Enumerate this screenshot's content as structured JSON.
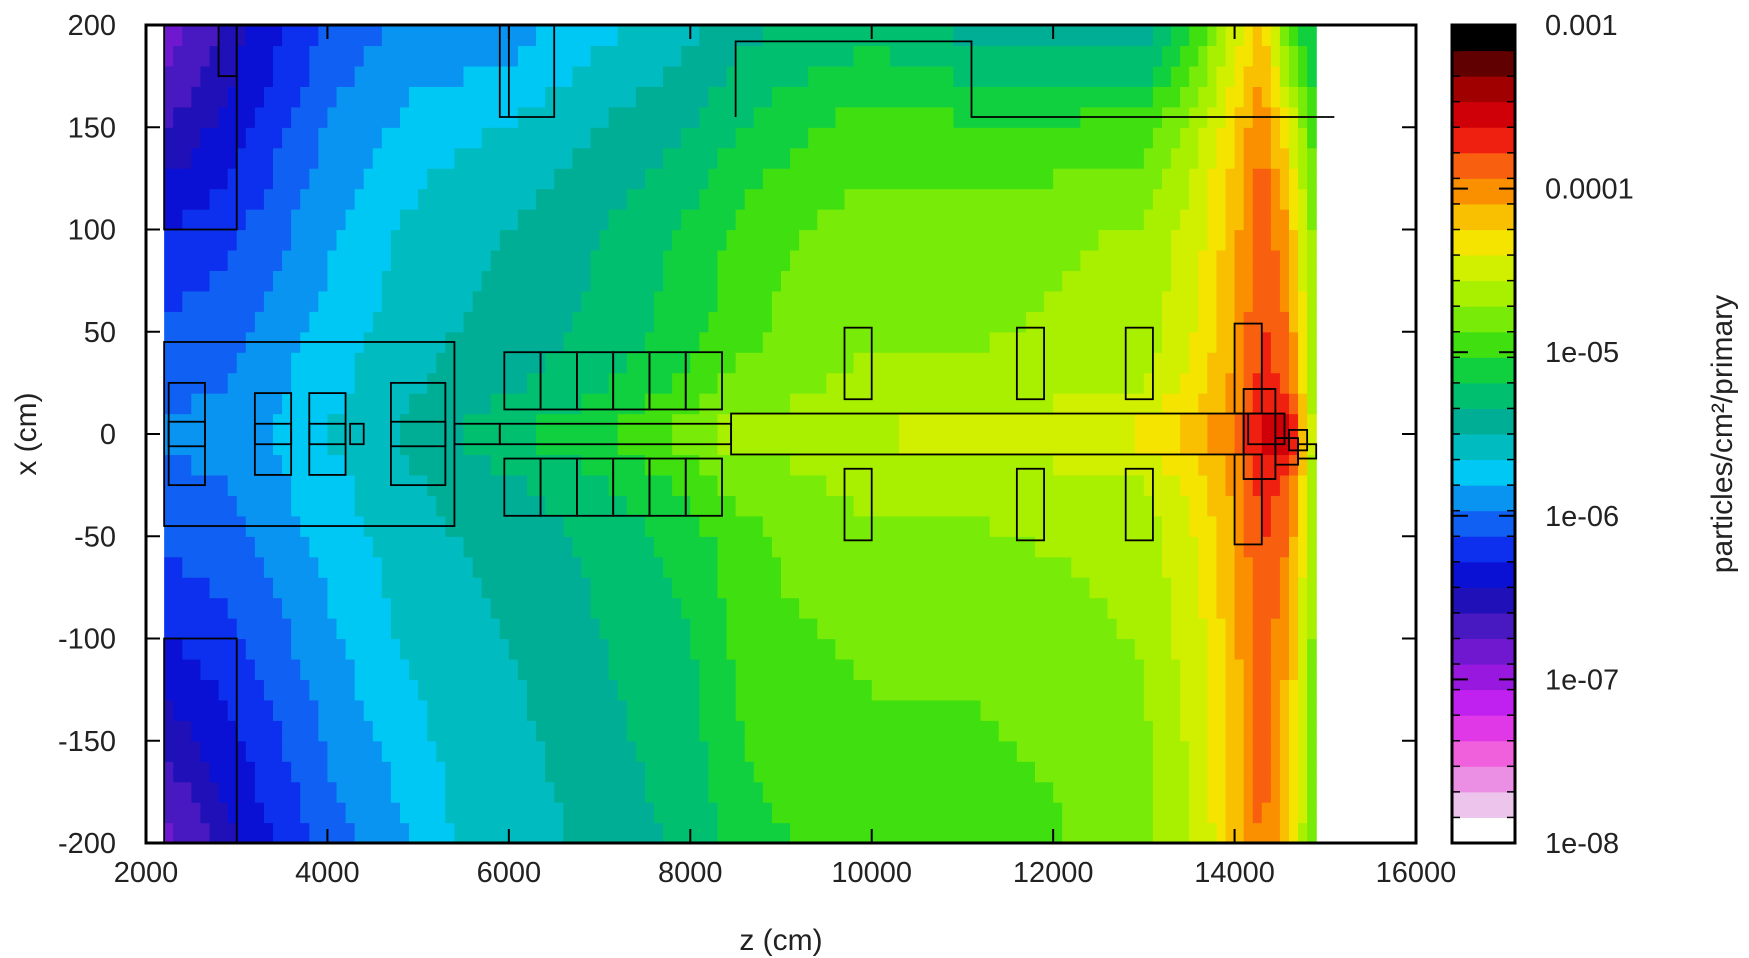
{
  "chart_data": {
    "type": "heatmap",
    "title": "",
    "xlabel": "z (cm)",
    "ylabel": "x (cm)",
    "colorbar_label": "particles/cm²/primary",
    "xlim": [
      2000,
      16000
    ],
    "ylim": [
      -200,
      200
    ],
    "x_ticks": [
      "2000",
      "4000",
      "6000",
      "8000",
      "10000",
      "12000",
      "14000",
      "16000"
    ],
    "y_ticks": [
      "200",
      "150",
      "100",
      "50",
      "0",
      "-50",
      "-100",
      "-150",
      "-200"
    ],
    "color_scale": "log",
    "zlim": [
      1e-08,
      0.001
    ],
    "colorbar_ticks": [
      "0.001",
      "0.0001",
      "1e-05",
      "1e-06",
      "1e-07",
      "1e-08"
    ],
    "colorbar_levels": [
      "#ffffff",
      "#ecc4ec",
      "#ea8fe4",
      "#f060dc",
      "#e038e6",
      "#c020f0",
      "#9818e0",
      "#7018d0",
      "#4818c0",
      "#2010b8",
      "#0a10d4",
      "#0c30ee",
      "#1060f4",
      "#0a94f2",
      "#00c8f4",
      "#00bcc0",
      "#00ae96",
      "#00c070",
      "#10d040",
      "#40e010",
      "#78ec08",
      "#a8f000",
      "#d0f000",
      "#f4e400",
      "#f8c000",
      "#fa9000",
      "#f86010",
      "#f02010",
      "#d00008",
      "#a00000",
      "#600000",
      "#000000"
    ],
    "colors": {
      "outline": "#000000",
      "frame": "#000000"
    },
    "field_map": {
      "description_of_values": "log10 of particle fluence (particles/cm2/primary) sampled on z-x grid",
      "z_points": [
        2200,
        3000,
        4000,
        5000,
        5400,
        6000,
        7000,
        8000,
        8500,
        9000,
        10000,
        11000,
        12000,
        13000,
        13600,
        14000,
        14300,
        14600,
        14900
      ],
      "x_points": [
        -200,
        -150,
        -100,
        -50,
        -20,
        0,
        20,
        50,
        100,
        150,
        200
      ],
      "log_fluence_columns": [
        [
          -6.85,
          -6.55,
          -6.3,
          -6.1,
          -6.0,
          -5.95,
          -6.0,
          -6.1,
          -6.3,
          -6.6,
          -6.9
        ],
        [
          -6.45,
          -6.3,
          -6.15,
          -6.0,
          -5.95,
          -5.9,
          -5.95,
          -6.0,
          -6.15,
          -6.35,
          -6.5
        ],
        [
          -6.05,
          -5.95,
          -5.85,
          -5.75,
          -5.7,
          -5.65,
          -5.7,
          -5.75,
          -5.85,
          -5.95,
          -6.1
        ],
        [
          -5.8,
          -5.7,
          -5.6,
          -5.55,
          -5.5,
          -5.45,
          -5.5,
          -5.55,
          -5.6,
          -5.75,
          -5.9
        ],
        [
          -5.65,
          -5.6,
          -5.55,
          -5.5,
          -5.45,
          -5.35,
          -5.45,
          -5.5,
          -5.55,
          -5.7,
          -5.95
        ],
        [
          -5.6,
          -5.55,
          -5.5,
          -5.45,
          -5.35,
          -5.2,
          -5.35,
          -5.45,
          -5.5,
          -5.65,
          -5.9
        ],
        [
          -5.45,
          -5.4,
          -5.35,
          -5.3,
          -5.2,
          -5.05,
          -5.2,
          -5.3,
          -5.35,
          -5.5,
          -5.7
        ],
        [
          -5.3,
          -5.25,
          -5.2,
          -5.1,
          -4.95,
          -4.8,
          -4.95,
          -5.1,
          -5.15,
          -5.35,
          -5.55
        ],
        [
          -5.15,
          -5.05,
          -5.0,
          -4.95,
          -4.8,
          -4.6,
          -4.8,
          -4.95,
          -5.0,
          -5.2,
          -5.4
        ],
        [
          -5.05,
          -4.95,
          -4.9,
          -4.85,
          -4.75,
          -4.65,
          -4.75,
          -4.85,
          -4.9,
          -5.1,
          -5.35
        ],
        [
          -4.95,
          -4.9,
          -4.85,
          -4.75,
          -4.65,
          -4.55,
          -4.65,
          -4.75,
          -4.8,
          -4.95,
          -5.25
        ],
        [
          -4.95,
          -4.9,
          -4.85,
          -4.75,
          -4.65,
          -4.5,
          -4.65,
          -4.75,
          -4.8,
          -5.0,
          -5.4
        ],
        [
          -4.9,
          -4.85,
          -4.8,
          -4.7,
          -4.6,
          -4.45,
          -4.6,
          -4.7,
          -4.75,
          -5.0,
          -5.45
        ],
        [
          -4.75,
          -4.75,
          -4.7,
          -4.65,
          -4.55,
          -4.35,
          -4.55,
          -4.65,
          -4.7,
          -4.95,
          -5.5
        ],
        [
          -4.55,
          -4.5,
          -4.45,
          -4.4,
          -4.3,
          -4.15,
          -4.3,
          -4.4,
          -4.45,
          -4.6,
          -5.0
        ],
        [
          -4.2,
          -4.15,
          -4.15,
          -4.1,
          -4.05,
          -3.9,
          -4.05,
          -4.1,
          -4.15,
          -4.25,
          -4.5
        ],
        [
          -3.9,
          -3.85,
          -3.8,
          -3.75,
          -3.7,
          -3.6,
          -3.7,
          -3.75,
          -3.8,
          -3.95,
          -4.2
        ],
        [
          -4.3,
          -4.2,
          -4.1,
          -3.95,
          -3.8,
          -3.5,
          -3.8,
          -3.95,
          -4.1,
          -4.4,
          -5.0
        ],
        [
          -4.85,
          -4.85,
          -4.85,
          -4.8,
          -4.8,
          -4.7,
          -4.8,
          -4.8,
          -4.85,
          -5.0,
          -5.2
        ]
      ]
    },
    "geometry_outlines": {
      "units": "data units (z cm, x cm)",
      "rectangles": [
        [
          2200,
          5400,
          -45,
          45
        ],
        [
          2800,
          3000,
          175,
          200
        ],
        [
          2200,
          3000,
          100,
          200
        ],
        [
          2200,
          3000,
          -200,
          -100
        ],
        [
          2250,
          2650,
          -25,
          25
        ],
        [
          2250,
          2650,
          -6,
          6
        ],
        [
          3200,
          3600,
          -20,
          20
        ],
        [
          3200,
          3600,
          -5,
          5
        ],
        [
          3800,
          4200,
          -20,
          20
        ],
        [
          3800,
          4200,
          -5,
          5
        ],
        [
          4250,
          4400,
          -5,
          5
        ],
        [
          4700,
          5300,
          -25,
          25
        ],
        [
          4700,
          5300,
          -6,
          6
        ],
        [
          5400,
          5900,
          -5,
          5
        ],
        [
          5900,
          8450,
          -5,
          5
        ],
        [
          5950,
          6350,
          12,
          40
        ],
        [
          6350,
          6750,
          12,
          40
        ],
        [
          6750,
          7150,
          12,
          40
        ],
        [
          7150,
          7550,
          12,
          40
        ],
        [
          7550,
          7950,
          12,
          40
        ],
        [
          7950,
          8350,
          12,
          40
        ],
        [
          5950,
          6350,
          -40,
          -12
        ],
        [
          6350,
          6750,
          -40,
          -12
        ],
        [
          6750,
          7150,
          -40,
          -12
        ],
        [
          7150,
          7550,
          -40,
          -12
        ],
        [
          7550,
          7950,
          -40,
          -12
        ],
        [
          7950,
          8350,
          -40,
          -12
        ],
        [
          8450,
          14100,
          -10,
          10
        ],
        [
          9700,
          10000,
          17,
          52
        ],
        [
          9700,
          10000,
          -52,
          -17
        ],
        [
          11600,
          11900,
          17,
          52
        ],
        [
          11600,
          11900,
          -52,
          -17
        ],
        [
          12800,
          13100,
          17,
          52
        ],
        [
          12800,
          13100,
          -52,
          -17
        ],
        [
          14000,
          14300,
          10,
          54
        ],
        [
          14000,
          14300,
          -54,
          -10
        ],
        [
          14100,
          14450,
          -22,
          22
        ],
        [
          14150,
          14550,
          -5,
          10
        ],
        [
          14450,
          14700,
          -15,
          -2
        ],
        [
          14600,
          14800,
          -8,
          2
        ],
        [
          14700,
          14900,
          -12,
          -5
        ]
      ],
      "polylines": [
        [
          [
            5900,
            200
          ],
          [
            5900,
            155
          ],
          [
            6500,
            155
          ],
          [
            6500,
            200
          ]
        ],
        [
          [
            6000,
            200
          ],
          [
            6000,
            155
          ]
        ],
        [
          [
            8500,
            155
          ],
          [
            8500,
            192
          ],
          [
            11100,
            192
          ],
          [
            11100,
            155
          ],
          [
            15100,
            155
          ]
        ]
      ]
    }
  }
}
